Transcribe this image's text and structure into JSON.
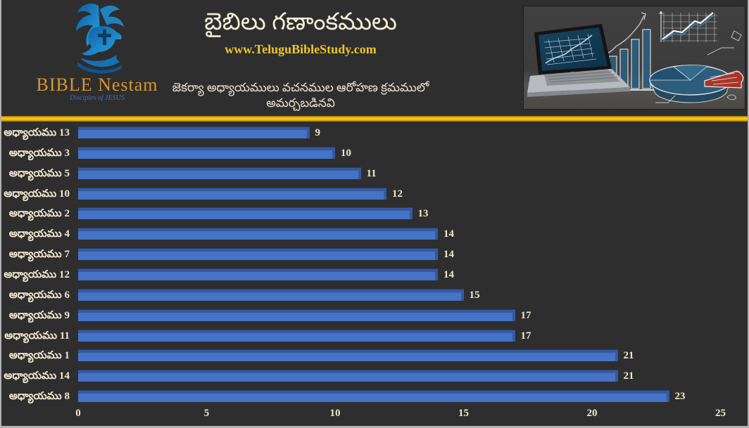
{
  "header": {
    "logo": {
      "name": "BIBLE Nestam",
      "tagline": "Disciples of JESUS",
      "icon": "dove-cross-hand-icon"
    },
    "title": "బైబిలు గణాంకములు",
    "website": "www.TeluguBibleStudy.com",
    "subtitle": "జెకర్యా అధ్యాయములు వచనముల ఆరోహణ క్రమములో అమర్చబడినవి",
    "photo": "laptop-with-chalkboard-charts-photo"
  },
  "colors": {
    "background": "#2e2e2f",
    "frame_border": "#b2b2b2",
    "bar_fill": "#4573c6",
    "bar_shade": "#36599e",
    "divider_gold": "#f2b800",
    "text_cream": "#f0e7cd",
    "website_gold": "#eec62c",
    "logo_gold": "#d9952f",
    "logo_blue": "#1e88c9"
  },
  "chart_data": {
    "type": "bar",
    "orientation": "horizontal",
    "title": "బైబిలు గణాంకములు",
    "subtitle": "జెకర్యా అధ్యాయములు వచనముల ఆరోహణ క్రమములో అమర్చబడినవి",
    "categories": [
      "అధ్యాయము 13",
      "అధ్యాయము 3",
      "అధ్యాయము 5",
      "అధ్యాయము 10",
      "అధ్యాయము 2",
      "అధ్యాయము 4",
      "అధ్యాయము 7",
      "అధ్యాయము 12",
      "అధ్యాయము 6",
      "అధ్యాయము 9",
      "అధ్యాయము 11",
      "అధ్యాయము 1",
      "అధ్యాయము 14",
      "అధ్యాయము 8"
    ],
    "values": [
      9,
      10,
      11,
      12,
      13,
      14,
      14,
      14,
      15,
      17,
      17,
      21,
      21,
      23
    ],
    "data_labels": [
      9,
      10,
      11,
      12,
      13,
      14,
      14,
      14,
      15,
      17,
      17,
      21,
      21,
      23
    ],
    "x_ticks": [
      0,
      5,
      10,
      15,
      20,
      25
    ],
    "xlim": [
      0,
      25
    ],
    "xlabel": "",
    "ylabel": "",
    "grid": false,
    "legend": false,
    "bar_color": "#4573c6",
    "sort_order": "ascending by verse count"
  }
}
